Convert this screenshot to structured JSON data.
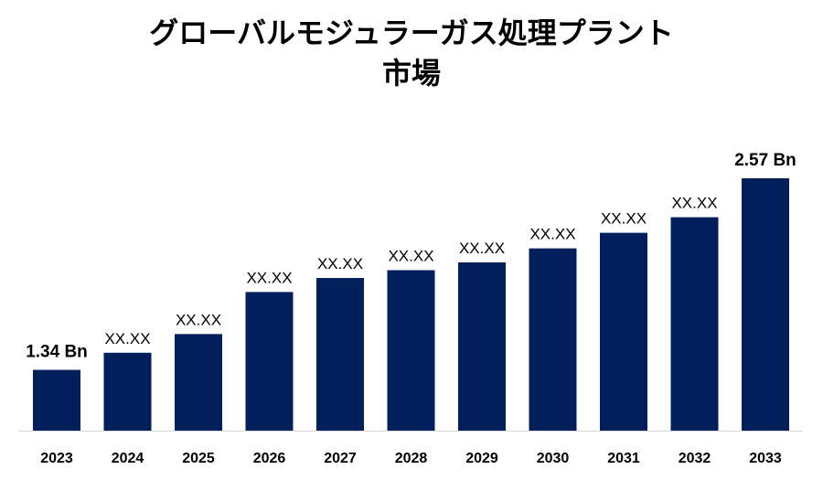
{
  "title_lines": [
    "グローバルモジュラーガス処理プラント",
    "市場"
  ],
  "chart_data": {
    "type": "bar",
    "title": "グローバルモジュラーガス処理プラント 市場",
    "categories": [
      "2023",
      "2024",
      "2025",
      "2026",
      "2027",
      "2028",
      "2029",
      "2030",
      "2031",
      "2032",
      "2033"
    ],
    "values": [
      1.34,
      1.45,
      1.57,
      1.84,
      1.93,
      1.98,
      2.03,
      2.12,
      2.22,
      2.32,
      2.57
    ],
    "data_labels": [
      "1.34 Bn",
      "XX.XX",
      "XX.XX",
      "XX.XX",
      "XX.XX",
      "XX.XX",
      "XX.XX",
      "XX.XX",
      "XX.XX",
      "XX.XX",
      "2.57 Bn"
    ],
    "emphasized_labels": [
      0,
      10
    ],
    "ylim": [
      0.95,
      2.57
    ],
    "xlabel": "",
    "ylabel": "",
    "grid": false,
    "bar_color": "#001f5b",
    "axis_color": "#d9d9d9"
  }
}
